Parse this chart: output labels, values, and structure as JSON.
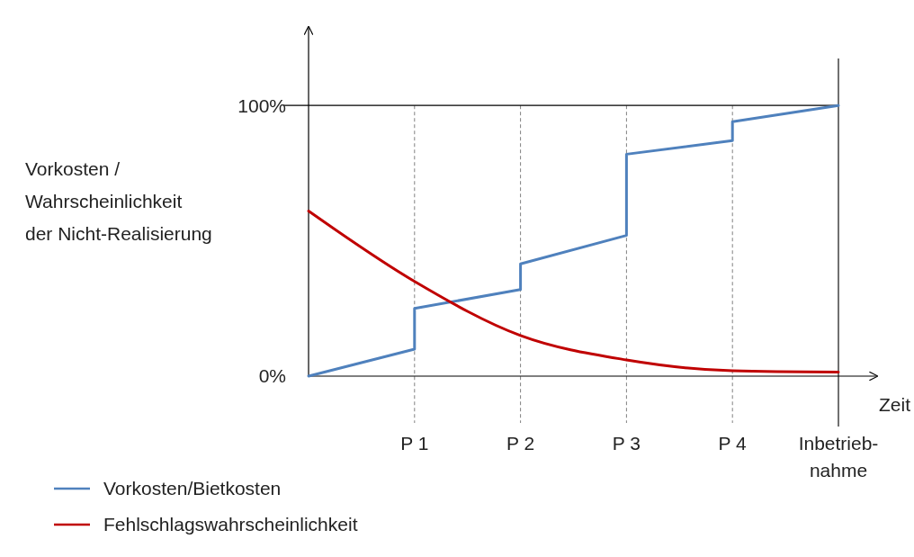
{
  "chart_data": {
    "type": "line",
    "xlabel": "Zeit",
    "ylabel": "Vorkosten /\nWahrscheinlichkeit\nder Nicht-Realisierung",
    "categories": [
      null,
      "P 1",
      "P 2",
      "P 3",
      "P 4",
      "Inbetrieb-\nnahme"
    ],
    "ylim": [
      0,
      129
    ],
    "yticks": [
      {
        "value": 0,
        "label": "0%"
      },
      {
        "value": 100,
        "label": "100%"
      }
    ],
    "grid": "x",
    "legend": "bottom left",
    "ref_lines": [
      {
        "axis": "y",
        "value": 100,
        "label": null,
        "color": "#000000"
      },
      {
        "axis": "x",
        "value": "Inbetrieb-\nnahme",
        "label": null,
        "color": "#404040"
      }
    ],
    "series": [
      {
        "name": "Vorkosten/Bietkosten",
        "color": "#4f81bd",
        "x": [
          null,
          "P 1",
          "P 1",
          "P 2",
          "P 2",
          "P 3",
          "P 3",
          "P 4",
          "P 4",
          "Inbetrieb-\nnahme"
        ],
        "values": [
          0,
          10,
          25,
          32,
          41.5,
          52,
          82,
          87,
          94,
          100
        ]
      },
      {
        "name": "Fehlschlagswahrscheinlichkeit",
        "color": "#c00000",
        "values": [
          61,
          35,
          15,
          6,
          2,
          1.5
        ]
      }
    ]
  }
}
